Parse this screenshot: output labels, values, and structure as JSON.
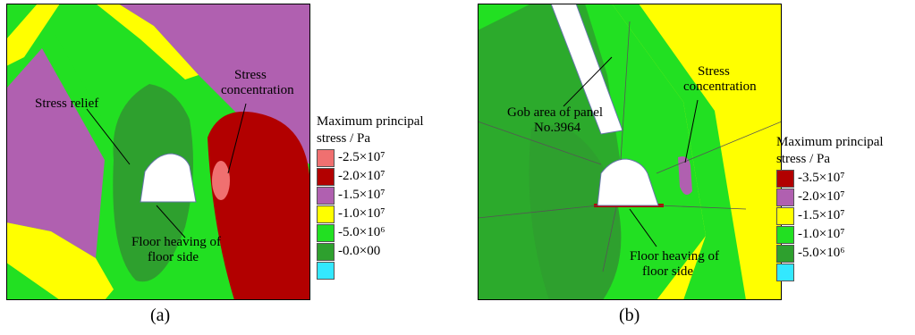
{
  "panels": [
    {
      "caption": "(a)",
      "annotations": {
        "stress_relief": "Stress relief",
        "stress_concentration_1": "Stress",
        "stress_concentration_2": "concentration",
        "floor_heaving_1": "Floor heaving of",
        "floor_heaving_2": "floor side"
      },
      "legend": {
        "title_1": "Maximum principal",
        "title_2": "stress / Pa",
        "entries": [
          {
            "label": "-2.5×10⁷",
            "color": "#f07070"
          },
          {
            "label": "-2.0×10⁷",
            "color": "#b20000"
          },
          {
            "label": "-1.5×10⁷",
            "color": "#b060b0"
          },
          {
            "label": "-1.0×10⁷",
            "color": "#ffff00"
          },
          {
            "label": "-5.0×10⁶",
            "color": "#22e022"
          },
          {
            "label": "-0.0×00",
            "color": "#2ea02e"
          },
          {
            "label": "",
            "color": "#33e8ff"
          }
        ]
      }
    },
    {
      "caption": "(b)",
      "annotations": {
        "gob_area_1": "Gob area of panel",
        "gob_area_2": "No.3964",
        "stress_concentration_1": "Stress",
        "stress_concentration_2": "concentration",
        "floor_heaving_1": "Floor heaving of",
        "floor_heaving_2": "floor side"
      },
      "legend": {
        "title_1": "Maximum principal",
        "title_2": "stress / Pa",
        "entries": [
          {
            "label": "-3.5×10⁷",
            "color": "#b20000"
          },
          {
            "label": "-2.0×10⁷",
            "color": "#b060b0"
          },
          {
            "label": "-1.5×10⁷",
            "color": "#ffff00"
          },
          {
            "label": "-1.0×10⁷",
            "color": "#22e022"
          },
          {
            "label": "-5.0×10⁶",
            "color": "#2ea02e"
          },
          {
            "label": "",
            "color": "#33e8ff"
          }
        ]
      }
    }
  ]
}
